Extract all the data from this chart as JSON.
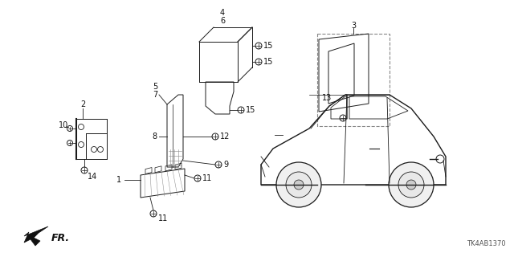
{
  "diagram_code": "TK4AB1370",
  "bg_color": "#ffffff",
  "lc": "#1a1a1a",
  "figsize": [
    6.4,
    3.2
  ],
  "dpi": 100,
  "xlim": [
    0,
    640
  ],
  "ylim": [
    0,
    320
  ]
}
